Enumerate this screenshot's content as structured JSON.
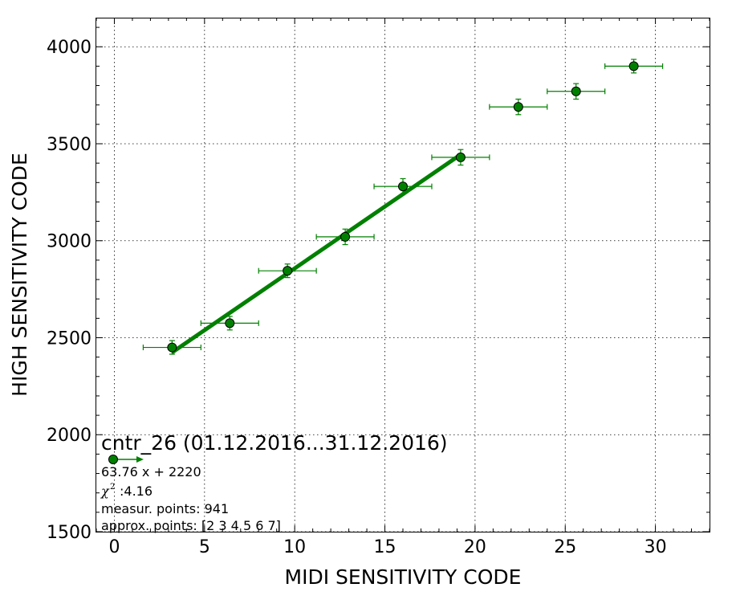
{
  "chart_data": {
    "type": "scatter",
    "xlabel": "MIDI SENSITIVITY CODE",
    "ylabel": "HIGH SENSITIVITY CODE",
    "xlim": [
      -1,
      33
    ],
    "ylim": [
      1500,
      4150
    ],
    "x_ticks": [
      0,
      5,
      10,
      15,
      20,
      25,
      30
    ],
    "y_ticks": [
      1500,
      2000,
      2500,
      3000,
      3500,
      4000
    ],
    "grid": true,
    "marker_color": "#008000",
    "points": [
      {
        "x": 3.2,
        "y": 2450,
        "xerr": 1.6,
        "yerr": 35
      },
      {
        "x": 6.4,
        "y": 2575,
        "xerr": 1.6,
        "yerr": 35
      },
      {
        "x": 9.6,
        "y": 2845,
        "xerr": 1.6,
        "yerr": 35
      },
      {
        "x": 12.8,
        "y": 3020,
        "xerr": 1.6,
        "yerr": 40
      },
      {
        "x": 16.0,
        "y": 3280,
        "xerr": 1.6,
        "yerr": 40
      },
      {
        "x": 19.2,
        "y": 3430,
        "xerr": 1.6,
        "yerr": 40
      },
      {
        "x": 22.4,
        "y": 3690,
        "xerr": 1.6,
        "yerr": 40
      },
      {
        "x": 25.6,
        "y": 3770,
        "xerr": 1.6,
        "yerr": 40
      },
      {
        "x": 28.8,
        "y": 3900,
        "xerr": 1.6,
        "yerr": 35
      }
    ],
    "fit": {
      "slope": 63.76,
      "intercept": 2220,
      "x_range": [
        3.2,
        19.2
      ]
    },
    "annotation": {
      "title": "cntr_26 (01.12.2016...31.12.2016)",
      "equation": "63.76 x + 2220",
      "chi_symbol": "χ",
      "chi_superscript": "2",
      "chi_value": ":4.16",
      "measur_points": "measur. points: 941",
      "approx_points": "approx. points: [2 3 4 5 6 7]"
    }
  }
}
